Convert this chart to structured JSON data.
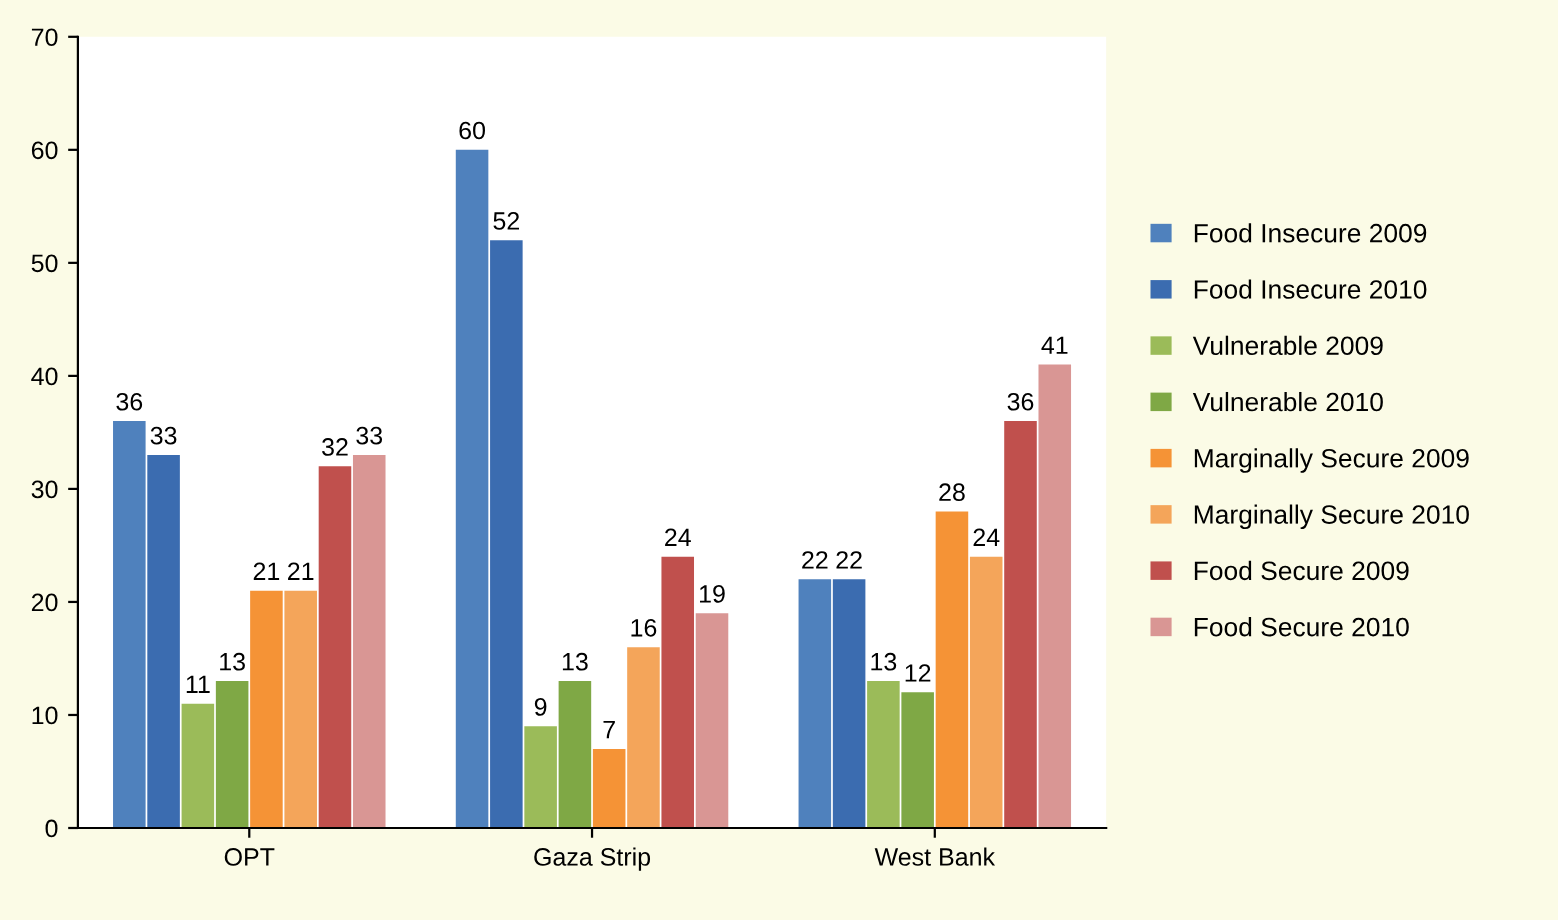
{
  "chart_data": {
    "type": "bar",
    "categories": [
      "OPT",
      "Gaza Strip",
      "West Bank"
    ],
    "series": [
      {
        "name": "Food Insecure 2009",
        "color": "#4f81bd",
        "values": [
          36,
          60,
          22
        ]
      },
      {
        "name": "Food Insecure 2010",
        "color": "#3b6cb0",
        "values": [
          33,
          52,
          22
        ]
      },
      {
        "name": "Vulnerable 2009",
        "color": "#9bbb59",
        "values": [
          11,
          9,
          13
        ]
      },
      {
        "name": "Vulnerable 2010",
        "color": "#7fa845",
        "values": [
          13,
          13,
          12
        ]
      },
      {
        "name": "Marginally Secure 2009",
        "color": "#f59336",
        "values": [
          21,
          7,
          28
        ]
      },
      {
        "name": "Marginally Secure 2010",
        "color": "#f4a55a",
        "values": [
          21,
          16,
          24
        ]
      },
      {
        "name": "Food Secure 2009",
        "color": "#c0504d",
        "values": [
          32,
          24,
          36
        ]
      },
      {
        "name": "Food Secure 2010",
        "color": "#d99694",
        "values": [
          33,
          19,
          41
        ]
      }
    ],
    "ylim": [
      0,
      70
    ],
    "yticks": [
      0,
      10,
      20,
      30,
      40,
      50,
      60,
      70
    ],
    "data_labels": true,
    "grid": false,
    "legend": "right"
  }
}
